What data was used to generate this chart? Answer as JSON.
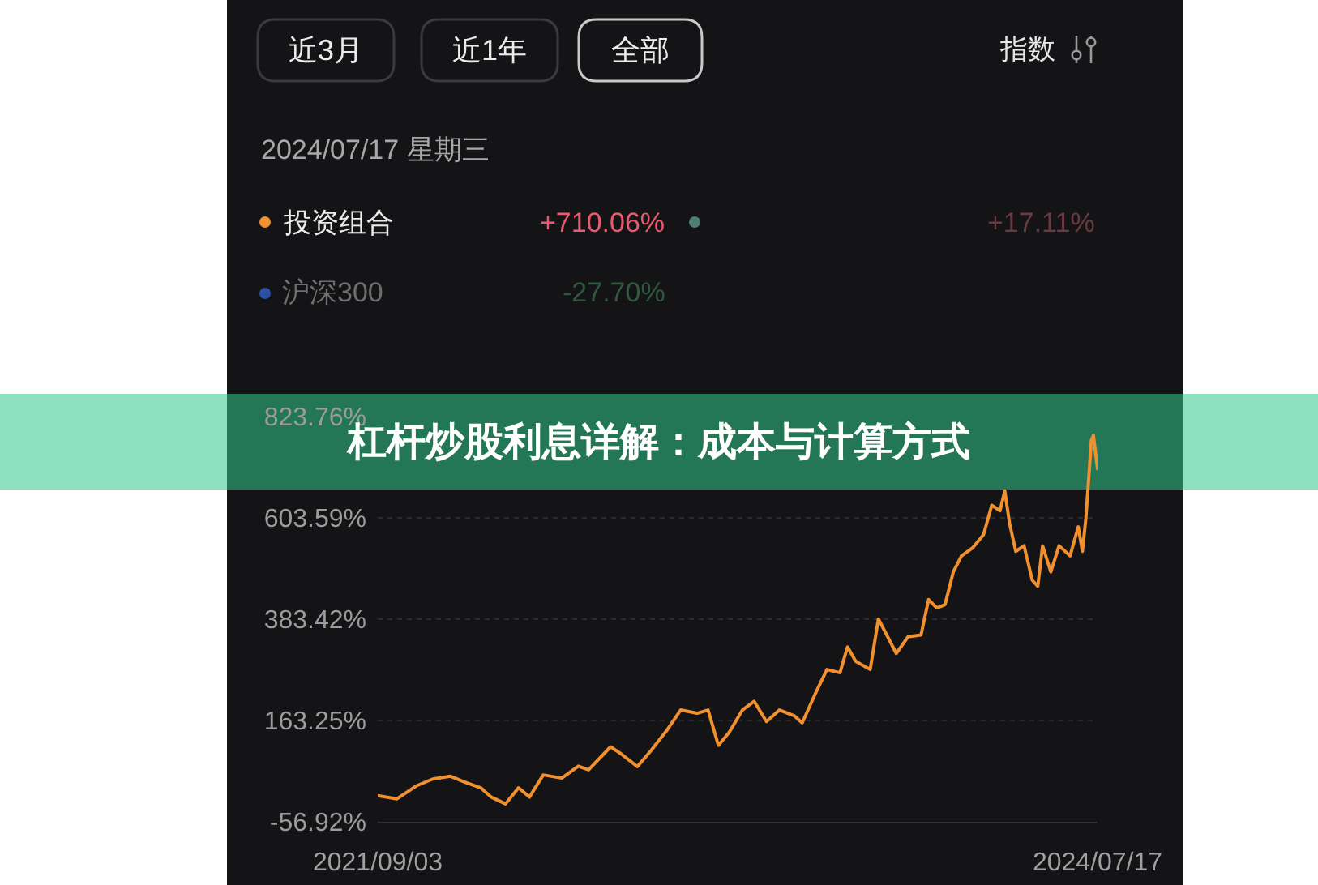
{
  "chart_data": {
    "type": "line",
    "title": "杠杆炒股利息详解：成本与计算方式",
    "subtitle": "2024/07/17 星期三",
    "x": [
      "2021-09-03",
      "2021-10-01",
      "2021-10-29",
      "2021-11-22",
      "2021-12-18",
      "2022-01-08",
      "2022-01-31",
      "2022-02-15",
      "2022-03-08",
      "2022-03-27",
      "2022-04-12",
      "2022-05-02",
      "2022-05-29",
      "2022-06-22",
      "2022-07-07",
      "2022-08-08",
      "2022-08-23",
      "2022-09-16",
      "2022-10-06",
      "2022-10-30",
      "2022-11-18",
      "2022-12-12",
      "2022-12-28",
      "2023-01-12",
      "2023-01-28",
      "2023-02-16",
      "2023-03-05",
      "2023-03-23",
      "2023-04-11",
      "2023-05-03",
      "2023-05-14",
      "2023-06-02",
      "2023-06-19",
      "2023-07-08",
      "2023-07-19",
      "2023-07-31",
      "2023-08-21",
      "2023-09-02",
      "2023-09-28",
      "2023-10-15",
      "2023-11-03",
      "2023-11-14",
      "2023-11-26",
      "2023-12-08",
      "2023-12-20",
      "2024-01-01",
      "2024-01-17",
      "2024-02-02",
      "2024-02-14",
      "2024-02-26",
      "2024-03-04",
      "2024-03-11",
      "2024-03-20",
      "2024-04-01",
      "2024-04-13",
      "2024-04-21",
      "2024-04-28",
      "2024-05-10",
      "2024-05-22",
      "2024-06-07",
      "2024-06-19",
      "2024-06-25",
      "2024-06-30",
      "2024-07-08",
      "2024-07-11",
      "2024-07-17"
    ],
    "series": [
      {
        "name": "投资组合",
        "color": "#f0902f",
        "values": [
          0,
          -7,
          21,
          36,
          42,
          29,
          17,
          -3,
          -18,
          17,
          -3,
          45,
          38,
          64,
          56,
          106,
          91,
          63,
          98,
          144,
          186,
          179,
          186,
          109,
          138,
          186,
          205,
          161,
          186,
          173,
          158,
          221,
          274,
          267,
          323,
          292,
          274,
          384,
          309,
          345,
          349,
          426,
          408,
          415,
          486,
          521,
          538,
          567,
          631,
          619,
          662,
          591,
          531,
          543,
          468,
          455,
          543,
          486,
          543,
          521,
          584,
          531,
          602,
          772,
          783,
          710.06
        ]
      },
      {
        "color": "#4f7d72",
        "values": [
          null,
          null,
          null,
          null,
          null,
          null,
          null,
          null,
          null,
          null,
          null,
          null,
          null,
          null,
          null,
          null,
          null,
          null,
          null,
          null,
          null,
          null,
          null,
          null,
          null,
          null,
          null,
          null,
          null,
          null,
          null,
          null,
          null,
          null,
          null,
          null,
          null,
          null,
          null,
          null,
          null,
          null,
          null,
          null,
          null,
          null,
          null,
          null,
          null,
          null,
          null,
          null,
          null,
          null,
          null,
          null,
          null,
          null,
          null,
          null,
          null,
          null,
          null,
          null,
          null,
          null
        ]
      },
      {
        "name": "沪深300",
        "color": "#2c4fa8",
        "values": [
          null,
          null,
          null,
          null,
          null,
          null,
          null,
          null,
          null,
          null,
          null,
          null,
          null,
          null,
          null,
          null,
          null,
          null,
          null,
          null,
          null,
          null,
          null,
          null,
          null,
          null,
          null,
          null,
          null,
          null,
          null,
          null,
          null,
          null,
          null,
          null,
          null,
          null,
          null,
          null,
          null,
          null,
          null,
          null,
          null,
          null,
          null,
          null,
          null,
          null,
          null,
          null,
          null,
          null,
          null,
          null,
          null,
          null,
          null,
          null,
          null,
          null,
          null,
          null,
          null,
          null
        ]
      }
    ],
    "xlim": [
      "2021-09-03",
      "2024-07-17"
    ],
    "xticks": [
      {
        "value": "2021-09-03",
        "label": "2021/09/03"
      },
      {
        "value": "2024-07-17",
        "label": "2024/07/17"
      }
    ],
    "ylim": [
      -56.92,
      823.76
    ],
    "yticks": [
      {
        "value": -56.92,
        "label": "-56.92%"
      },
      {
        "value": 163.25,
        "label": "163.25%"
      },
      {
        "value": 383.42,
        "label": "383.42%"
      },
      {
        "value": 603.59,
        "label": "603.59%"
      },
      {
        "value": 823.76,
        "label": "823.76%"
      }
    ],
    "grid": "y",
    "legend": "top left",
    "annotations": [
      "近3月",
      "近1年",
      "全部",
      "指数",
      "+710.06%",
      "+17.11%",
      "-27.70%"
    ]
  }
}
